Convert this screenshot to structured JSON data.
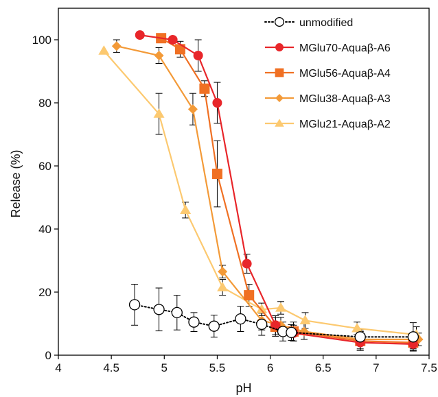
{
  "chart_data": {
    "type": "line",
    "title": "",
    "xlabel": "pH",
    "ylabel": "Release (%)",
    "xlim": [
      4,
      7.5
    ],
    "ylim": [
      0,
      110
    ],
    "xticks": [
      "4",
      "4.5",
      "5",
      "5.5",
      "6",
      "6.5",
      "7",
      "7.5"
    ],
    "yticks": [
      "0",
      "20",
      "40",
      "60",
      "80",
      "100"
    ],
    "grid": false,
    "legend_position": "top-right",
    "series": [
      {
        "name": "unmodified",
        "marker": "circle-open",
        "line": "dotted",
        "color": "#000000",
        "x": [
          4.72,
          4.95,
          5.12,
          5.28,
          5.47,
          5.72,
          5.92,
          6.12,
          6.2,
          6.85,
          7.35
        ],
        "y": [
          16,
          14.5,
          13.5,
          10.5,
          9.2,
          11.5,
          9.8,
          7.5,
          7.2,
          5.8,
          5.8
        ],
        "err": [
          6.5,
          6.8,
          5.5,
          3,
          3.5,
          4,
          3.5,
          3,
          2.5,
          2.5,
          4.5
        ]
      },
      {
        "name": "MGlu70-Aquaβ-A6",
        "marker": "circle",
        "line": "solid",
        "color": "#E8262A",
        "x": [
          4.77,
          5.08,
          5.32,
          5.5,
          5.78,
          6.05,
          6.22,
          6.85,
          7.35
        ],
        "y": [
          101.5,
          100,
          95,
          80,
          29,
          9.5,
          7,
          4,
          3.5
        ],
        "err": [
          0,
          1,
          5,
          6.5,
          3,
          3,
          2.5,
          2.5,
          2
        ]
      },
      {
        "name": "MGlu56-Aquaβ-A4",
        "marker": "square",
        "line": "solid",
        "color": "#F07023",
        "x": [
          4.97,
          5.15,
          5.38,
          5.5,
          5.8,
          6.05,
          6.22,
          6.85,
          7.35
        ],
        "y": [
          100.5,
          97,
          84.5,
          57.5,
          19,
          9,
          7.5,
          4.5,
          4
        ],
        "err": [
          0,
          2.5,
          2.5,
          10.5,
          3.5,
          3,
          3,
          3,
          2
        ]
      },
      {
        "name": "MGlu38-Aquaβ-A3",
        "marker": "diamond",
        "line": "solid",
        "color": "#F39A38",
        "x": [
          4.55,
          4.95,
          5.27,
          5.55,
          5.92,
          6.1,
          6.32,
          6.85,
          7.4
        ],
        "y": [
          98,
          95,
          78,
          26.5,
          11,
          9.5,
          7.5,
          5,
          5
        ],
        "err": [
          2,
          2.5,
          5,
          2,
          3,
          2.5,
          2.5,
          3,
          2
        ]
      },
      {
        "name": "MGlu21-Aquaβ-A2",
        "marker": "triangle",
        "line": "solid",
        "color": "#FCC970",
        "x": [
          4.43,
          4.95,
          5.2,
          5.55,
          5.92,
          6.1,
          6.33,
          6.82,
          7.38
        ],
        "y": [
          96.5,
          76.5,
          46,
          21.5,
          14.5,
          15,
          11,
          8.5,
          6.5
        ],
        "err": [
          0,
          6.5,
          2.5,
          2.5,
          2,
          2,
          2.5,
          2,
          2.5
        ]
      }
    ]
  }
}
